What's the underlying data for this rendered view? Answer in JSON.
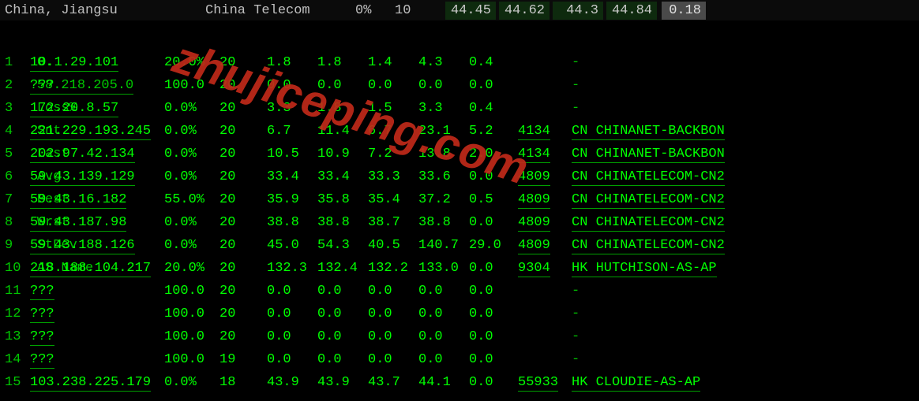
{
  "header": {
    "location": "China, Jiangsu",
    "isp": "China Telecom",
    "loss_pct": "0%",
    "sent": "10",
    "pings": [
      "44.45",
      "44.62",
      "44.3",
      "44.84"
    ],
    "drift": "0.18"
  },
  "columns": {
    "idx": "0.",
    "host": "58.218.205.0",
    "loss": "Loss%",
    "snt": "Snt",
    "last": "Last",
    "avg": "Avg",
    "best": "Best",
    "wrst": "Wrst",
    "stdev": "StDev",
    "asname": "AS Name"
  },
  "hops": [
    {
      "idx": "1",
      "host": "10.1.29.101",
      "loss": "20.0%",
      "snt": "20",
      "last": "1.8",
      "avg": "1.8",
      "best": "1.4",
      "wrst": "4.3",
      "stdev": "0.4",
      "asn": "",
      "name": "-"
    },
    {
      "idx": "2",
      "host": "???",
      "loss": "100.0",
      "snt": "20",
      "last": "0.0",
      "avg": "0.0",
      "best": "0.0",
      "wrst": "0.0",
      "stdev": "0.0",
      "asn": "",
      "name": "-"
    },
    {
      "idx": "3",
      "host": "172.20.8.57",
      "loss": "0.0%",
      "snt": "20",
      "last": "3.3",
      "avg": "1.8",
      "best": "1.5",
      "wrst": "3.3",
      "stdev": "0.4",
      "asn": "",
      "name": "-"
    },
    {
      "idx": "4",
      "host": "221.229.193.245",
      "loss": "0.0%",
      "snt": "20",
      "last": "6.7",
      "avg": "11.4",
      "best": "6.7",
      "wrst": "23.1",
      "stdev": "5.2",
      "asn": "4134",
      "name": "CN CHINANET-BACKBON"
    },
    {
      "idx": "5",
      "host": "202.97.42.134",
      "loss": "0.0%",
      "snt": "20",
      "last": "10.5",
      "avg": "10.9",
      "best": "7.2",
      "wrst": "13.8",
      "stdev": "2.0",
      "asn": "4134",
      "name": "CN CHINANET-BACKBON"
    },
    {
      "idx": "6",
      "host": "59.43.139.129",
      "loss": "0.0%",
      "snt": "20",
      "last": "33.4",
      "avg": "33.4",
      "best": "33.3",
      "wrst": "33.6",
      "stdev": "0.0",
      "asn": "4809",
      "name": "CN CHINATELECOM-CN2"
    },
    {
      "idx": "7",
      "host": "59.43.16.182",
      "loss": "55.0%",
      "snt": "20",
      "last": "35.9",
      "avg": "35.8",
      "best": "35.4",
      "wrst": "37.2",
      "stdev": "0.5",
      "asn": "4809",
      "name": "CN CHINATELECOM-CN2"
    },
    {
      "idx": "8",
      "host": "59.43.187.98",
      "loss": "0.0%",
      "snt": "20",
      "last": "38.8",
      "avg": "38.8",
      "best": "38.7",
      "wrst": "38.8",
      "stdev": "0.0",
      "asn": "4809",
      "name": "CN CHINATELECOM-CN2"
    },
    {
      "idx": "9",
      "host": "59.43.188.126",
      "loss": "0.0%",
      "snt": "20",
      "last": "45.0",
      "avg": "54.3",
      "best": "40.5",
      "wrst": "140.7",
      "stdev": "29.0",
      "asn": "4809",
      "name": "CN CHINATELECOM-CN2"
    },
    {
      "idx": "10",
      "host": "218.188.104.217",
      "loss": "20.0%",
      "snt": "20",
      "last": "132.3",
      "avg": "132.4",
      "best": "132.2",
      "wrst": "133.0",
      "stdev": "0.0",
      "asn": "9304",
      "name": "HK HUTCHISON-AS-AP"
    },
    {
      "idx": "11",
      "host": "???",
      "loss": "100.0",
      "snt": "20",
      "last": "0.0",
      "avg": "0.0",
      "best": "0.0",
      "wrst": "0.0",
      "stdev": "0.0",
      "asn": "",
      "name": "-"
    },
    {
      "idx": "12",
      "host": "???",
      "loss": "100.0",
      "snt": "20",
      "last": "0.0",
      "avg": "0.0",
      "best": "0.0",
      "wrst": "0.0",
      "stdev": "0.0",
      "asn": "",
      "name": "-"
    },
    {
      "idx": "13",
      "host": "???",
      "loss": "100.0",
      "snt": "20",
      "last": "0.0",
      "avg": "0.0",
      "best": "0.0",
      "wrst": "0.0",
      "stdev": "0.0",
      "asn": "",
      "name": "-"
    },
    {
      "idx": "14",
      "host": "???",
      "loss": "100.0",
      "snt": "19",
      "last": "0.0",
      "avg": "0.0",
      "best": "0.0",
      "wrst": "0.0",
      "stdev": "0.0",
      "asn": "",
      "name": "-"
    },
    {
      "idx": "15",
      "host": "103.238.225.179",
      "loss": "0.0%",
      "snt": "18",
      "last": "43.9",
      "avg": "43.9",
      "best": "43.7",
      "wrst": "44.1",
      "stdev": "0.0",
      "asn": "55933",
      "name": "HK CLOUDIE-AS-AP"
    }
  ],
  "watermark": "zhujiceping.com",
  "colors": {
    "bg": "#000000",
    "text": "#00ff00",
    "header_text": "#c0c0c0",
    "ping_bg": "#0e2a0e",
    "drift_bg": "#4a4a4a",
    "underline": "#00a000",
    "watermark": "#c02a1a"
  }
}
